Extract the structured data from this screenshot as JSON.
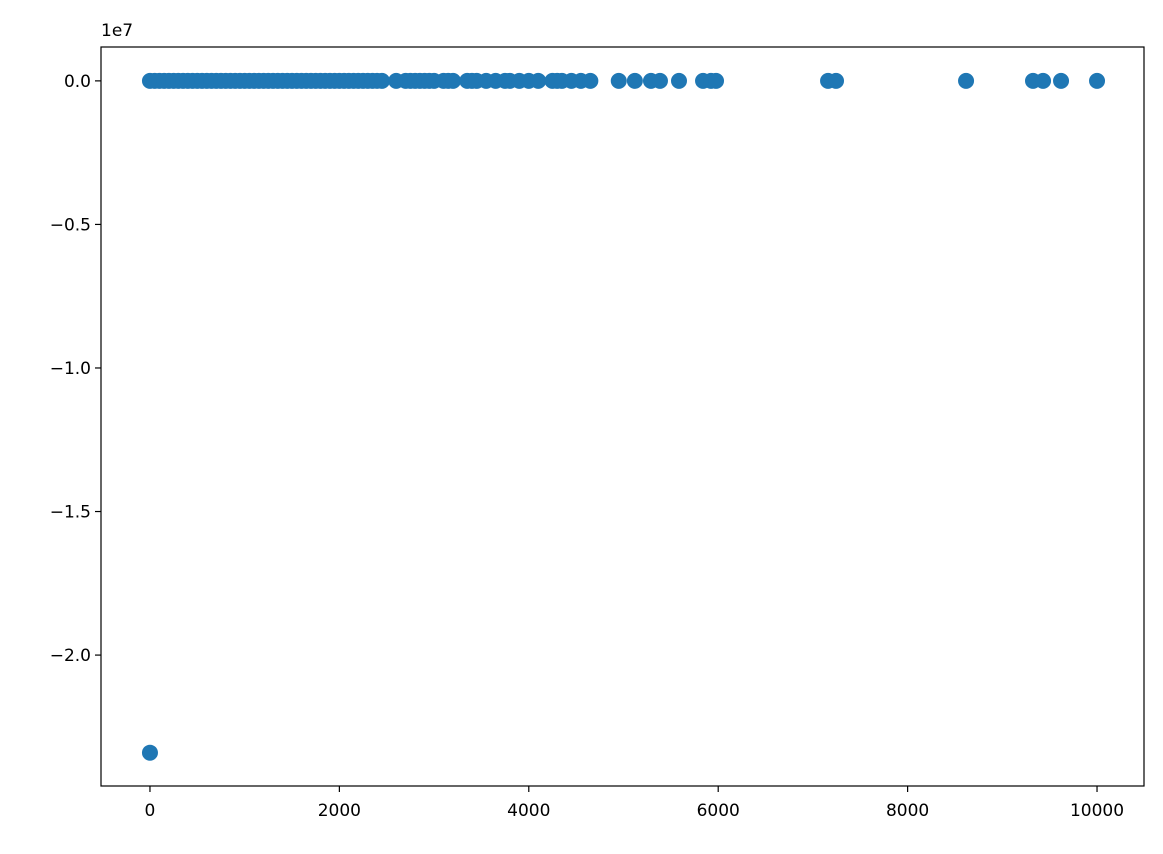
{
  "chart_data": {
    "type": "scatter",
    "y_offset_label": "1e7",
    "color": "#1f77b4",
    "x": [
      0,
      0,
      50,
      100,
      150,
      200,
      250,
      300,
      350,
      400,
      450,
      500,
      550,
      600,
      650,
      700,
      750,
      800,
      850,
      900,
      950,
      1000,
      1050,
      1100,
      1150,
      1200,
      1250,
      1300,
      1350,
      1400,
      1450,
      1500,
      1550,
      1600,
      1650,
      1700,
      1750,
      1800,
      1850,
      1900,
      1950,
      2000,
      2050,
      2100,
      2150,
      2200,
      2250,
      2300,
      2350,
      2400,
      2450,
      2600,
      2700,
      2750,
      2800,
      2850,
      2900,
      2950,
      3000,
      3100,
      3150,
      3200,
      3350,
      3400,
      3450,
      3550,
      3650,
      3750,
      3800,
      3900,
      4000,
      4100,
      4250,
      4300,
      4350,
      4450,
      4550,
      4650,
      4950,
      5120,
      5290,
      5385,
      5586,
      5840,
      5924,
      5977,
      7160,
      7244,
      8617,
      9324,
      9430,
      9620,
      10000
    ],
    "values": [
      -2.34,
      0,
      0,
      0,
      0,
      0,
      0,
      0,
      0,
      0,
      0,
      0,
      0,
      0,
      0,
      0,
      0,
      0,
      0,
      0,
      0,
      0,
      0,
      0,
      0,
      0,
      0,
      0,
      0,
      0,
      0,
      0,
      0,
      0,
      0,
      0,
      0,
      0,
      0,
      0,
      0,
      0,
      0,
      0,
      0,
      0,
      0,
      0,
      0,
      0,
      0,
      0,
      0,
      0,
      0,
      0,
      0,
      0,
      0,
      0,
      0,
      0,
      0,
      0,
      0,
      0,
      0,
      0,
      0,
      0,
      0,
      0,
      0,
      0,
      0,
      0,
      0,
      0,
      0,
      0,
      0,
      0,
      0,
      0,
      0,
      0,
      0,
      0,
      0,
      0,
      0,
      0,
      0
    ],
    "xlim": [
      -517,
      10496
    ],
    "ylim": [
      -2.456,
      0.118
    ],
    "xticks": [
      0,
      2000,
      4000,
      6000,
      8000,
      10000
    ],
    "yticks": [
      {
        "value": 0,
        "label": "0.0"
      },
      {
        "value": -0.5,
        "label": "−0.5"
      },
      {
        "value": -1.0,
        "label": "−1.0"
      },
      {
        "value": -1.5,
        "label": "−1.5"
      },
      {
        "value": -2.0,
        "label": "−2.0"
      }
    ],
    "grid": false
  }
}
